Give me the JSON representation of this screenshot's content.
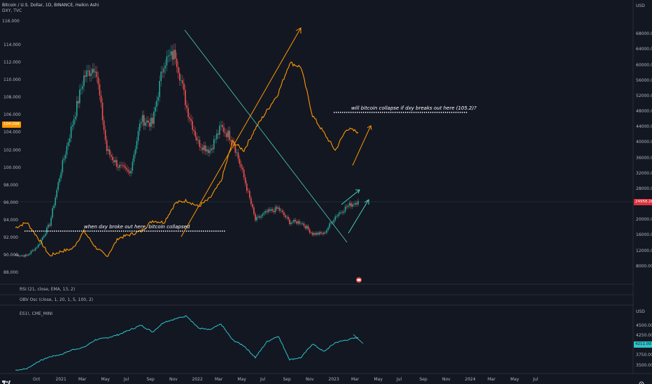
{
  "header": {
    "title": "Bitcoin / U.S. Dollar, 1D, BINANCE, Heikin Ashi",
    "overlay": "DXY, TVC",
    "currency_top": "USD",
    "top_left_value": "116.000"
  },
  "tags": {
    "dxy_last": "104.098",
    "btc_last": "24956.26",
    "es_last": "4211.00"
  },
  "annotations": {
    "top": "will bitcoin collapse if dxy breaks out here (105.2)?",
    "bottom": "when dxy broke out here, bitcoin collapsed"
  },
  "indicators": {
    "rsi": "RSI (21, close, EMA, 13, 2)",
    "obv": "OBV Osc (close, 1, 20, 1, 5, 100, 2)",
    "es": "ES1!, CME_MINI",
    "es_currency": "USD"
  },
  "colors": {
    "btc_up": "#26a69a",
    "btc_down": "#ef5350",
    "dxy": "#ff9800",
    "es": "#2ec4c9",
    "trend": "#4dd0c0"
  },
  "chart_data": [
    {
      "type": "line",
      "title": "Bitcoin / U.S. Dollar, 1D, BINANCE, Heikin Ashi",
      "series": [
        {
          "name": "BTCUSD",
          "x": [
            "Sep 2020",
            "Oct 2020",
            "Nov 2020",
            "Dec 2020",
            "Jan 2021",
            "Feb 2021",
            "Mar 2021",
            "Apr 2021",
            "May 2021",
            "Jun 2021",
            "Jul 2021",
            "Aug 2021",
            "Sep 2021",
            "Oct 2021",
            "Nov 2021",
            "Dec 2021",
            "Jan 2022",
            "Feb 2022",
            "Mar 2022",
            "Apr 2022",
            "May 2022",
            "Jun 2022",
            "Jul 2022",
            "Aug 2022",
            "Sep 2022",
            "Oct 2022",
            "Nov 2022",
            "Dec 2022",
            "Jan 2023",
            "Feb 2023",
            "Mar 2023"
          ],
          "values": [
            11000,
            10800,
            13500,
            19000,
            33000,
            45000,
            57000,
            60000,
            38000,
            34000,
            32000,
            46000,
            45000,
            61000,
            63000,
            49000,
            40000,
            38000,
            44000,
            41000,
            31000,
            20000,
            22000,
            23000,
            19500,
            19500,
            16500,
            16500,
            21000,
            23500,
            24956
          ],
          "axis": "right"
        },
        {
          "name": "DXY",
          "x": [
            "Sep 2020",
            "Oct 2020",
            "Nov 2020",
            "Dec 2020",
            "Jan 2021",
            "Feb 2021",
            "Mar 2021",
            "Apr 2021",
            "May 2021",
            "Jun 2021",
            "Jul 2021",
            "Aug 2021",
            "Sep 2021",
            "Oct 2021",
            "Nov 2021",
            "Dec 2021",
            "Jan 2022",
            "Feb 2022",
            "Mar 2022",
            "Apr 2022",
            "May 2022",
            "Jun 2022",
            "Jul 2022",
            "Aug 2022",
            "Sep 2022",
            "Oct 2022",
            "Nov 2022",
            "Dec 2022",
            "Jan 2023",
            "Feb 2023",
            "Mar 2023"
          ],
          "values": [
            93.2,
            93.8,
            92.0,
            90.0,
            90.5,
            90.8,
            92.8,
            91.0,
            89.9,
            92.0,
            92.4,
            92.8,
            94.0,
            93.8,
            96.0,
            96.3,
            95.6,
            96.5,
            98.5,
            103.0,
            102.0,
            104.5,
            106.5,
            108.5,
            112.0,
            111.5,
            106.0,
            104.0,
            102.0,
            104.5,
            104.1
          ],
          "axis": "left"
        }
      ],
      "left_axis_ticks": [
        "88.000",
        "90.000",
        "92.000",
        "94.000",
        "96.000",
        "98.000",
        "100.000",
        "102.000",
        "104.000",
        "106.000",
        "108.000",
        "110.000",
        "112.000",
        "114.000"
      ],
      "right_axis_ticks": [
        "8000.00",
        "12000.00",
        "16000.00",
        "20000.00",
        "24000.00",
        "28000.00",
        "32000.00",
        "36000.00",
        "40000.00",
        "44000.00",
        "48000.00",
        "52000.00",
        "56000.00",
        "60000.00",
        "64000.00",
        "68000.00"
      ],
      "ylim_left": [
        87,
        117
      ],
      "ylim_right": [
        4000,
        72000
      ]
    },
    {
      "type": "line",
      "title": "ES1!, CME_MINI",
      "series": [
        {
          "name": "ES1!",
          "x": [
            "Sep 2020",
            "Oct 2020",
            "Nov 2020",
            "Dec 2020",
            "Jan 2021",
            "Feb 2021",
            "Mar 2021",
            "Apr 2021",
            "May 2021",
            "Jun 2021",
            "Jul 2021",
            "Aug 2021",
            "Sep 2021",
            "Oct 2021",
            "Nov 2021",
            "Dec 2021",
            "Jan 2022",
            "Feb 2022",
            "Mar 2022",
            "Apr 2022",
            "May 2022",
            "Jun 2022",
            "Jul 2022",
            "Aug 2022",
            "Sep 2022",
            "Oct 2022",
            "Nov 2022",
            "Dec 2022",
            "Jan 2023",
            "Feb 2023",
            "Mar 2023"
          ],
          "values": [
            3380,
            3420,
            3600,
            3720,
            3780,
            3900,
            3960,
            4150,
            4200,
            4280,
            4400,
            4520,
            4350,
            4600,
            4680,
            4760,
            4450,
            4400,
            4550,
            4150,
            4000,
            3700,
            4100,
            4250,
            3650,
            3700,
            4050,
            3850,
            4080,
            4150,
            4211
          ]
        }
      ],
      "ticks": [
        "3500.00",
        "3750.00",
        "4000.00",
        "4250.00",
        "4500.00"
      ],
      "ylim": [
        3350,
        4800
      ]
    }
  ],
  "x_axis_labels": [
    "Oct",
    "2021",
    "Mar",
    "May",
    "Jul",
    "Sep",
    "Nov",
    "2022",
    "Mar",
    "May",
    "Jul",
    "Sep",
    "Nov",
    "2023",
    "Mar",
    "May",
    "Jul",
    "Sep",
    "Nov",
    "2024",
    "Mar",
    "May",
    "Jul"
  ]
}
